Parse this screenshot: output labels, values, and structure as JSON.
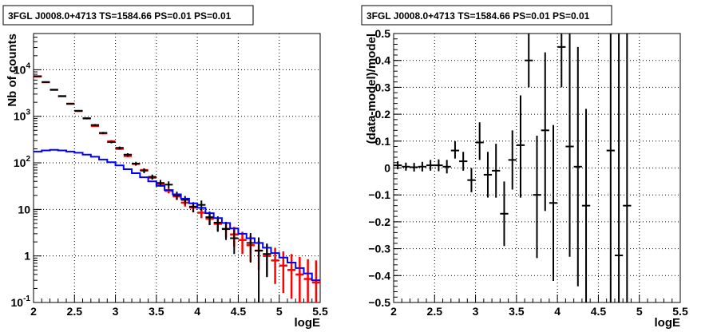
{
  "chart_data": [
    {
      "type": "line",
      "title": "3FGL J0008.0+4713 TS=1584.66 PS=0.01 PS=0.01",
      "xlabel": "logE",
      "ylabel": "Nb of counts",
      "xlim": [
        2,
        5.5
      ],
      "ylim": [
        0.1,
        60000
      ],
      "log_y": true,
      "grid": true,
      "x_ticks": [
        "2",
        "2.5",
        "3",
        "3.5",
        "4",
        "4.5",
        "5",
        "5.5"
      ],
      "y_ticks": [
        {
          "value": 0.1,
          "label": "10",
          "exp": "-1"
        },
        {
          "value": 1,
          "label": "1",
          "exp": ""
        },
        {
          "value": 10,
          "label": "10",
          "exp": ""
        },
        {
          "value": 100,
          "label": "10",
          "exp": "2"
        },
        {
          "value": 1000,
          "label": "10",
          "exp": "3"
        },
        {
          "value": 10000,
          "label": "10",
          "exp": "4"
        }
      ],
      "bin_width": 0.1,
      "series": [
        {
          "color": "#ff0000",
          "style": "errorbars",
          "x": [
            2.05,
            2.15,
            2.25,
            2.35,
            2.45,
            2.55,
            2.65,
            2.75,
            2.85,
            2.95,
            3.05,
            3.15,
            3.25,
            3.35,
            3.45,
            3.55,
            3.65,
            3.75,
            3.85,
            3.95,
            4.05,
            4.15,
            4.25,
            4.35,
            4.45,
            4.55,
            4.65,
            4.75,
            4.85,
            4.95,
            5.05,
            5.15,
            5.25,
            5.35,
            5.45
          ],
          "y": [
            7200,
            5400,
            3700,
            2700,
            1850,
            1300,
            900,
            620,
            430,
            290,
            200,
            140,
            95,
            70,
            48,
            35,
            25,
            19,
            14,
            11,
            8.5,
            6.3,
            4.9,
            3.8,
            2.9,
            2.2,
            1.7,
            1.3,
            1.0,
            0.8,
            0.62,
            0.5,
            0.4,
            0.32,
            0.27
          ],
          "ylow": [
            7050,
            5260,
            3590,
            2610,
            1780,
            1250,
            860,
            590,
            410,
            275,
            190,
            132,
            89,
            65,
            44,
            31,
            22,
            16,
            11.5,
            8.6,
            6.5,
            4.6,
            3.4,
            2.5,
            1.6,
            1.1,
            0.75,
            0.5,
            0.36,
            0.25,
            0.16,
            0.12,
            0.1,
            0.1,
            0.1
          ],
          "yhigh": [
            7350,
            5550,
            3810,
            2790,
            1920,
            1350,
            940,
            650,
            450,
            305,
            210,
            148,
            101,
            75,
            52,
            39,
            28,
            22,
            16.5,
            13.4,
            10.5,
            8.0,
            6.4,
            5.1,
            4.2,
            3.3,
            2.7,
            2.1,
            1.75,
            1.5,
            1.25,
            1.1,
            0.95,
            0.85,
            0.8
          ]
        },
        {
          "color": "#000000",
          "style": "errorbars",
          "x": [
            2.05,
            2.15,
            2.25,
            2.35,
            2.45,
            2.55,
            2.65,
            2.75,
            2.85,
            2.95,
            3.05,
            3.15,
            3.25,
            3.35,
            3.45,
            3.55,
            3.65,
            3.75,
            3.85,
            3.95,
            4.05,
            4.15,
            4.25,
            4.35,
            4.45,
            4.65,
            4.75,
            4.85
          ],
          "y": [
            7250,
            5430,
            3720,
            2710,
            1870,
            1310,
            905,
            650,
            440,
            280,
            210,
            150,
            96,
            68,
            50,
            37,
            34,
            20,
            16,
            11.5,
            12.5,
            6.8,
            5.2,
            3.8,
            2.4,
            1.9,
            1.3,
            1.1
          ],
          "ylow": [
            7100,
            5290,
            3610,
            2620,
            1800,
            1260,
            865,
            618,
            418,
            262,
            196,
            139,
            87,
            60,
            44,
            31,
            28,
            16,
            12.6,
            8.7,
            9.5,
            4.6,
            3.3,
            2.2,
            1.1,
            0.72,
            0.1,
            0.35
          ],
          "yhigh": [
            7400,
            5580,
            3830,
            2800,
            1940,
            1360,
            945,
            682,
            462,
            298,
            224,
            161,
            105,
            76,
            56,
            43,
            40,
            24,
            19.4,
            14.3,
            15.5,
            9.0,
            7.1,
            5.4,
            3.7,
            3.1,
            2.5,
            1.85
          ]
        },
        {
          "color": "#0000ff",
          "style": "step",
          "x": [
            2.05,
            2.15,
            2.25,
            2.35,
            2.45,
            2.55,
            2.65,
            2.75,
            2.85,
            2.95,
            3.05,
            3.15,
            3.25,
            3.35,
            3.45,
            3.55,
            3.65,
            3.75,
            3.85,
            3.95,
            4.05,
            4.15,
            4.25,
            4.35,
            4.45,
            4.55,
            4.65,
            4.75,
            4.85,
            4.95,
            5.05,
            5.15,
            5.25,
            5.35,
            5.45
          ],
          "y": [
            175,
            185,
            190,
            185,
            175,
            165,
            150,
            135,
            118,
            103,
            88,
            73,
            60,
            49,
            40,
            32,
            26,
            21,
            17,
            13.5,
            10.8,
            8.3,
            6.5,
            5.1,
            3.9,
            3.0,
            2.4,
            1.9,
            1.5,
            1.15,
            0.92,
            0.72,
            0.55,
            0.42,
            0.3
          ]
        }
      ]
    },
    {
      "type": "scatter",
      "title": "3FGL J0008.0+4713 TS=1584.66 PS=0.01 PS=0.01",
      "xlabel": "logE",
      "ylabel": "(data-model)/model",
      "xlim": [
        2,
        5.5
      ],
      "ylim": [
        -0.5,
        0.5
      ],
      "grid": true,
      "x_ticks": [
        "2",
        "2.5",
        "3",
        "3.5",
        "4",
        "4.5",
        "5",
        "5.5"
      ],
      "y_ticks": [
        {
          "value": -0.5,
          "label": "−0.5"
        },
        {
          "value": -0.4,
          "label": "−0.4"
        },
        {
          "value": -0.3,
          "label": "−0.3"
        },
        {
          "value": -0.2,
          "label": "−0.2"
        },
        {
          "value": -0.1,
          "label": "−0.1"
        },
        {
          "value": 0,
          "label": "0"
        },
        {
          "value": 0.1,
          "label": "0.1"
        },
        {
          "value": 0.2,
          "label": "0.2"
        },
        {
          "value": 0.3,
          "label": "0.3"
        },
        {
          "value": 0.4,
          "label": "0.4"
        },
        {
          "value": 0.5,
          "label": "0.5"
        }
      ],
      "bin_width": 0.1,
      "series": [
        {
          "color": "#000000",
          "style": "errorbars",
          "x": [
            2.05,
            2.15,
            2.25,
            2.35,
            2.45,
            2.55,
            2.65,
            2.75,
            2.85,
            2.95,
            3.05,
            3.15,
            3.25,
            3.35,
            3.45,
            3.55,
            3.65,
            3.75,
            3.85,
            3.95,
            4.05,
            4.15,
            4.25,
            4.35,
            4.65,
            4.75,
            4.85
          ],
          "y": [
            0.01,
            0.005,
            0.003,
            0.005,
            0.01,
            0.01,
            0.005,
            0.065,
            0.025,
            -0.045,
            0.095,
            -0.025,
            -0.01,
            -0.17,
            0.03,
            0.085,
            0.4,
            -0.1,
            0.14,
            -0.13,
            0.45,
            0.08,
            0.005,
            -0.14,
            0.065,
            -0.325,
            -0.14
          ],
          "ylow": [
            -0.005,
            -0.01,
            -0.013,
            -0.013,
            -0.01,
            -0.012,
            -0.02,
            0.035,
            -0.01,
            -0.09,
            0.03,
            -0.11,
            -0.11,
            -0.29,
            -0.08,
            -0.11,
            0.3,
            -0.335,
            -0.16,
            -0.42,
            0.3,
            -0.33,
            -0.44,
            -0.5,
            -0.5,
            -0.5,
            -0.5
          ],
          "yhigh": [
            0.025,
            0.02,
            0.019,
            0.023,
            0.03,
            0.032,
            0.03,
            0.1,
            0.06,
            0.0,
            0.17,
            0.06,
            0.09,
            -0.05,
            0.14,
            0.27,
            0.5,
            0.12,
            0.43,
            0.16,
            0.5,
            0.5,
            0.45,
            0.22,
            0.5,
            0.5,
            0.5
          ]
        }
      ]
    }
  ]
}
